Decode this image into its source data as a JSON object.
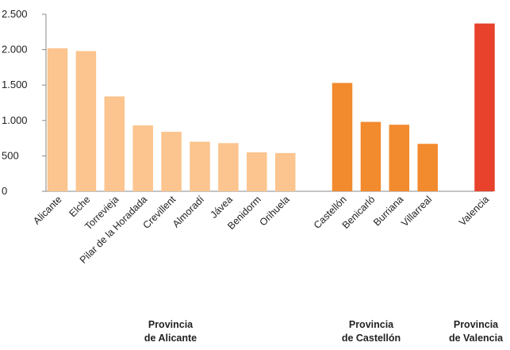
{
  "chart_data": {
    "type": "bar",
    "ylim": [
      0,
      2500
    ],
    "yticks": [
      0,
      500,
      1000,
      1500,
      2000,
      2500
    ],
    "ytick_labels": [
      "0",
      "500",
      "1.000",
      "1.500",
      "2.000",
      "2.500"
    ],
    "grid": false,
    "legend": "none",
    "groups": [
      {
        "label_line1": "Provincia",
        "label_line2": "de Alicante",
        "color": "#FCC48E",
        "categories": [
          "Alicante",
          "Elche",
          "Torrevieja",
          "Pilar de la Horadada",
          "Crevillent",
          "Almoradí",
          "Jávea",
          "Benidorm",
          "Orihuela"
        ],
        "values": [
          2020,
          1980,
          1340,
          930,
          840,
          700,
          680,
          550,
          540
        ]
      },
      {
        "label_line1": "Provincia",
        "label_line2": "de Castellón",
        "color": "#F28A2E",
        "categories": [
          "Castellón",
          "Benicarló",
          "Burriana",
          "Villarreal"
        ],
        "values": [
          1530,
          980,
          940,
          670
        ]
      },
      {
        "label_line1": "Provincia",
        "label_line2": "de Valencia",
        "color": "#E8412C",
        "categories": [
          "Valencia"
        ],
        "values": [
          2370
        ]
      }
    ]
  }
}
